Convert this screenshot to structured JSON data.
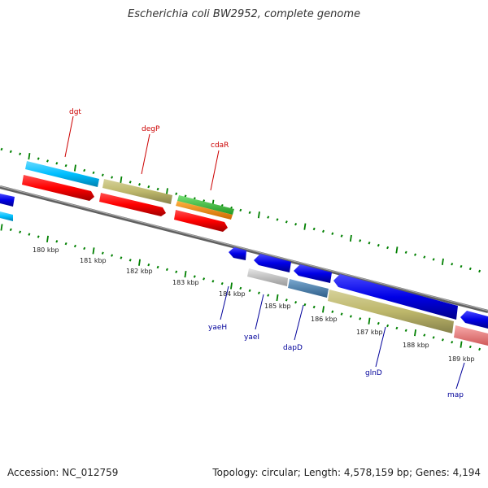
{
  "title": "Escherichia coli BW2952, complete genome",
  "footer": {
    "accession": "Accession: NC_012759",
    "summary": "Topology: circular; Length: 4,578,159 bp; Genes: 4,194"
  },
  "scale_labels": [
    "180 kbp",
    "181 kbp",
    "182 kbp",
    "183 kbp",
    "184 kbp",
    "185 kbp",
    "186 kbp",
    "187 kbp",
    "188 kbp",
    "189 kbp"
  ],
  "gene_labels_upper": [
    "dgt",
    "degP",
    "cdaR"
  ],
  "gene_labels_lower": [
    "yaeH",
    "yaeI",
    "dapD",
    "glnD",
    "map"
  ],
  "colors": {
    "backbone": "#808080",
    "cds_blue": "#0000e6",
    "cds_red": "#ff0000",
    "cds_cyan": "#00bfff",
    "cds_khaki": "#bdb76b",
    "cds_green": "#33cc33",
    "cds_orange": "#ff8c00",
    "cds_steel": "#4682b4",
    "cds_silver": "#c0c0c0",
    "cds_pink": "#f08080",
    "tick_green": "#008000",
    "label_red": "#cc0000",
    "label_blue": "#00009a"
  }
}
